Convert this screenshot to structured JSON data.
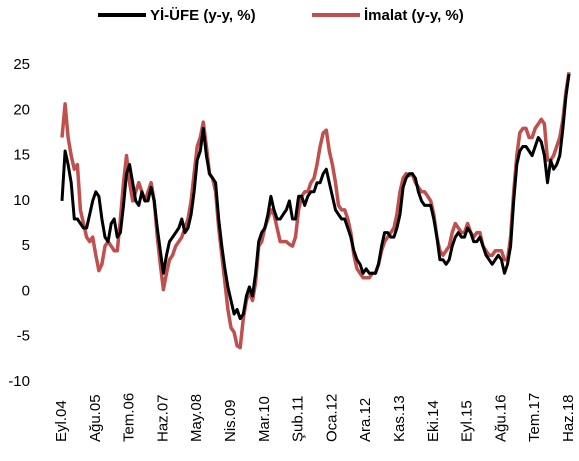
{
  "chart_data": {
    "type": "line",
    "categories": [
      "Eyl.04",
      null,
      null,
      null,
      null,
      null,
      null,
      null,
      null,
      null,
      null,
      "Ağu.05",
      null,
      null,
      null,
      null,
      null,
      null,
      null,
      null,
      null,
      null,
      "Tem.06",
      null,
      null,
      null,
      null,
      null,
      null,
      null,
      null,
      null,
      null,
      "Haz.07",
      null,
      null,
      null,
      null,
      null,
      null,
      null,
      null,
      null,
      null,
      "May.08",
      null,
      null,
      null,
      null,
      null,
      null,
      null,
      null,
      null,
      null,
      "Nis.09",
      null,
      null,
      null,
      null,
      null,
      null,
      null,
      null,
      null,
      null,
      "Mar.10",
      null,
      null,
      null,
      null,
      null,
      null,
      null,
      null,
      null,
      null,
      "Şub.11",
      null,
      null,
      null,
      null,
      null,
      null,
      null,
      null,
      null,
      null,
      "Oca.12",
      null,
      null,
      null,
      null,
      null,
      null,
      null,
      null,
      null,
      null,
      "Ara.12",
      null,
      null,
      null,
      null,
      null,
      null,
      null,
      null,
      null,
      null,
      "Kas.13",
      null,
      null,
      null,
      null,
      null,
      null,
      null,
      null,
      null,
      null,
      "Eki.14",
      null,
      null,
      null,
      null,
      null,
      null,
      null,
      null,
      null,
      null,
      "Eyl.15",
      null,
      null,
      null,
      null,
      null,
      null,
      null,
      null,
      null,
      null,
      "Ağu.16",
      null,
      null,
      null,
      null,
      null,
      null,
      null,
      null,
      null,
      null,
      "Tem.17",
      null,
      null,
      null,
      null,
      null,
      null,
      null,
      null,
      null,
      null,
      "Haz.18"
    ],
    "series": [
      {
        "name": "Yİ-ÜFE (y-y, %)",
        "color": "#000000",
        "values": [
          10,
          15.5,
          14,
          12,
          8,
          8,
          7.5,
          7,
          7,
          8.5,
          10,
          11,
          10.5,
          8,
          6,
          5.5,
          7.5,
          8,
          6,
          6.5,
          9.5,
          13,
          14,
          12,
          10,
          9.5,
          11,
          10,
          10,
          11.5,
          10,
          7,
          4.5,
          2,
          4,
          5.5,
          6,
          6.5,
          7,
          8,
          6.5,
          7,
          8.5,
          11,
          14.5,
          15.5,
          18,
          15,
          13,
          12.5,
          12,
          8,
          5,
          2.5,
          0.5,
          -1,
          -2.5,
          -2,
          -3,
          -2.5,
          -0.5,
          0.5,
          -0.5,
          2,
          5.5,
          6.5,
          7,
          8.5,
          10.5,
          9,
          8,
          8,
          8.5,
          9,
          10,
          8,
          8,
          10.5,
          10.5,
          9.5,
          10.5,
          11,
          11,
          12,
          12,
          13,
          13.5,
          12,
          10.5,
          9,
          8.5,
          8,
          8,
          7,
          6,
          4.5,
          3.5,
          3,
          2,
          2.5,
          2,
          2,
          2,
          3,
          5,
          6.5,
          6.5,
          6,
          6,
          7,
          8.5,
          11.5,
          12.5,
          13,
          13,
          12.5,
          11,
          10,
          9.5,
          9.5,
          9.5,
          8,
          6,
          3.5,
          3.5,
          3,
          3.5,
          5,
          6,
          6.5,
          6,
          6,
          7,
          6.5,
          5.5,
          5.5,
          6,
          5,
          4,
          3.5,
          3,
          3.5,
          4,
          3.5,
          2,
          3,
          5,
          10,
          14,
          15.5,
          16,
          16,
          15.5,
          15,
          16,
          17,
          16.5,
          15,
          12,
          14.5,
          13.5,
          14,
          15,
          18,
          21.5,
          24
        ]
      },
      {
        "name": "İmalat (y-y, %)",
        "color": "#c0504d",
        "values": [
          17,
          20.7,
          17,
          15,
          13.5,
          14,
          9,
          7.5,
          6,
          5.5,
          6,
          4,
          2.3,
          3,
          5,
          5.5,
          5,
          4.5,
          4.5,
          8,
          12,
          15,
          12,
          10,
          11,
          12,
          11,
          10,
          11,
          12,
          10,
          6,
          3,
          0.2,
          2,
          3.5,
          4,
          5,
          5.5,
          6,
          7,
          8,
          10,
          13,
          16,
          17,
          18.7,
          16,
          13,
          12.5,
          11,
          7,
          4,
          1,
          -2,
          -4,
          -4.5,
          -6,
          -6.2,
          -3,
          -1,
          0,
          -1,
          1,
          5,
          5.5,
          7,
          8,
          9,
          8.5,
          7,
          5.5,
          5.5,
          5.5,
          5.2,
          5,
          6,
          9,
          10.5,
          11,
          11,
          12,
          12.5,
          14,
          16,
          17.5,
          17.8,
          15.5,
          14,
          12,
          9.5,
          9,
          9,
          8,
          6.5,
          4,
          2.5,
          2,
          1.5,
          1.5,
          1.5,
          2,
          2,
          3,
          4.5,
          5.5,
          6,
          6.5,
          7,
          8.5,
          11,
          12.5,
          13,
          12.8,
          13,
          12,
          11.5,
          11,
          11,
          10.5,
          10,
          8.5,
          6,
          4.5,
          4,
          4.5,
          5,
          6.5,
          7.5,
          7,
          6.5,
          6.5,
          7.5,
          6.5,
          6,
          6.5,
          6.5,
          5,
          4.5,
          4,
          4,
          4.5,
          4.5,
          4.5,
          3.5,
          3.5,
          6,
          11,
          15,
          17.5,
          18,
          18,
          17,
          17,
          18,
          18.5,
          19,
          18.5,
          14.5,
          14.5,
          15,
          16,
          17,
          19,
          22,
          24.2
        ]
      }
    ],
    "ylim": [
      -10,
      25
    ],
    "yticks": [
      -10,
      -5,
      0,
      5,
      10,
      15,
      20,
      25
    ],
    "grid": false,
    "legend": "top"
  }
}
